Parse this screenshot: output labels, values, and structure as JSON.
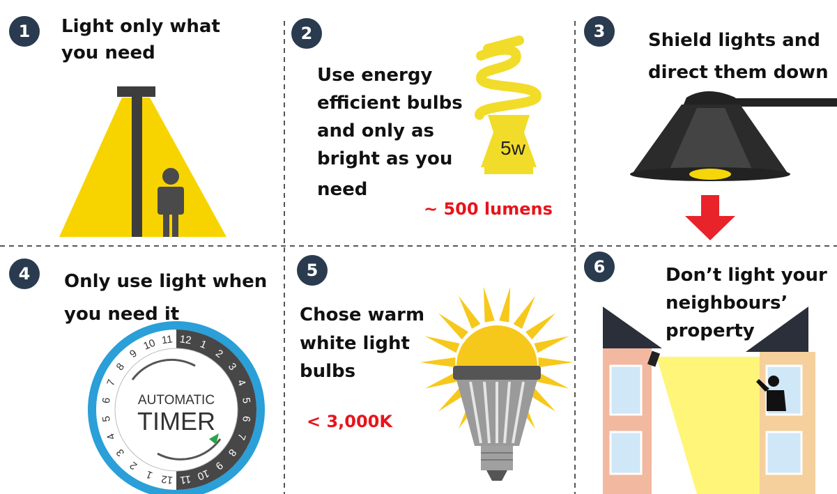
{
  "panels": [
    {
      "number": "1",
      "title": [
        "Light only what",
        "you need"
      ]
    },
    {
      "number": "2",
      "title": [
        "Use energy",
        "efficient bulbs",
        "and only as",
        "bright as you",
        "need"
      ],
      "note": "~ 500 lumens",
      "icon_text": [
        "5w"
      ]
    },
    {
      "number": "3",
      "title": [
        "Shield lights and",
        "direct them down"
      ]
    },
    {
      "number": "4",
      "title": [
        "Only use light when",
        "you need it"
      ],
      "icon_text": [
        "AUTOMATIC",
        "TIMER"
      ],
      "dial_dark": [
        "12",
        "1",
        "2",
        "3",
        "4",
        "5",
        "6",
        "7",
        "8",
        "9",
        "10",
        "11"
      ],
      "dial_light": [
        "12",
        "1",
        "2",
        "3",
        "4",
        "5",
        "6",
        "7",
        "8",
        "9",
        "10",
        "11"
      ]
    },
    {
      "number": "5",
      "title": [
        "Chose warm",
        "white light",
        "bulbs"
      ],
      "note": "< 3,000K"
    },
    {
      "number": "6",
      "title": [
        "Don’t light your",
        "neighbours’",
        "property"
      ]
    }
  ]
}
